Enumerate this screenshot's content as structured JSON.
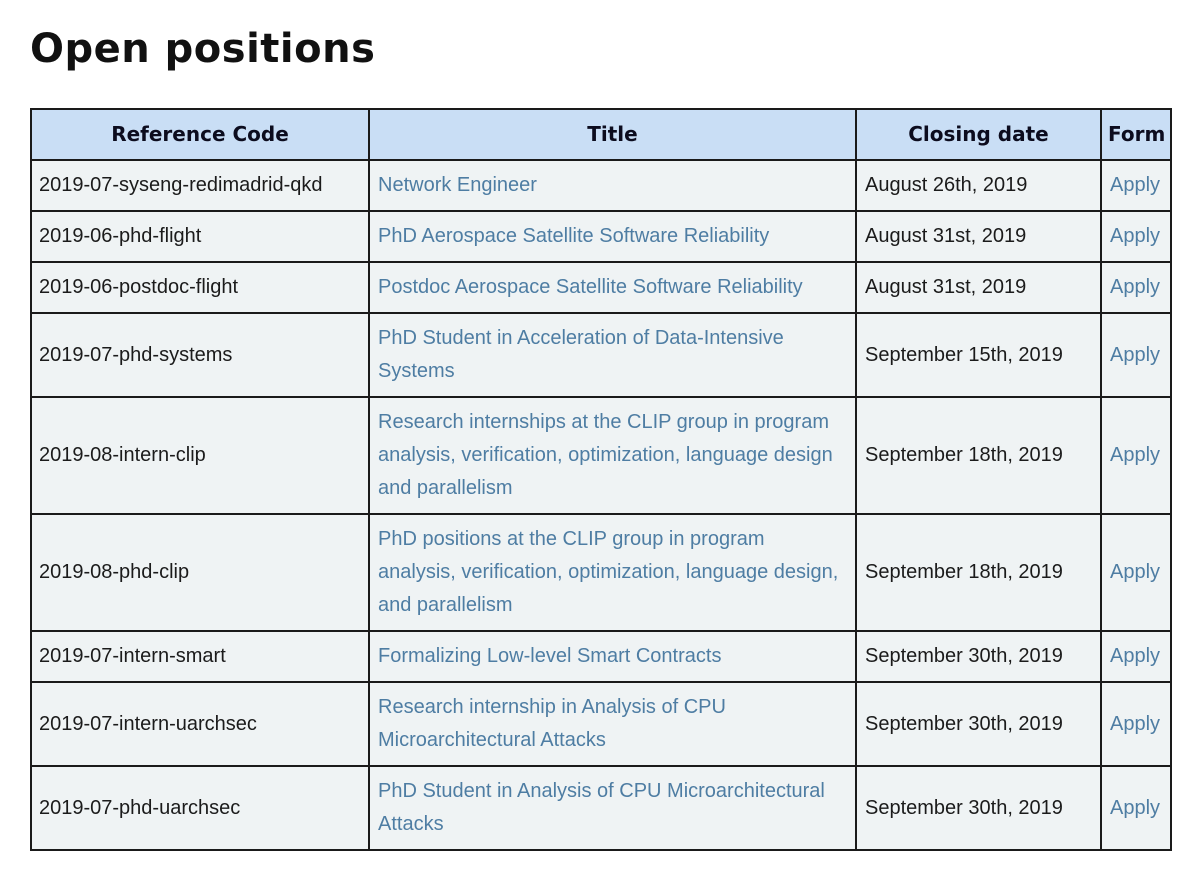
{
  "page": {
    "title": "Open positions"
  },
  "colors": {
    "header_bg": "#c9def5",
    "row_bg": "#eff3f4",
    "border": "#1a1a1a",
    "link": "#4e7da3",
    "header_text": "#0c0c1e",
    "body_text": "#1b1b1b",
    "heading_text": "#111111"
  },
  "table": {
    "headers": [
      "Reference Code",
      "Title",
      "Closing date",
      "Form"
    ],
    "rows": [
      {
        "ref": "2019-07-syseng-redimadrid-qkd",
        "title": "Network Engineer",
        "closing": "August 26th, 2019",
        "form": "Apply"
      },
      {
        "ref": "2019-06-phd-flight",
        "title": "PhD Aerospace Satellite Software Reliability",
        "closing": "August 31st, 2019",
        "form": "Apply"
      },
      {
        "ref": "2019-06-postdoc-flight",
        "title": "Postdoc Aerospace Satellite Software Reliability",
        "closing": "August 31st, 2019",
        "form": "Apply"
      },
      {
        "ref": "2019-07-phd-systems",
        "title": "PhD Student in Acceleration of Data-Intensive Systems",
        "closing": "September 15th, 2019",
        "form": "Apply"
      },
      {
        "ref": "2019-08-intern-clip",
        "title": "Research internships at the CLIP group in program analysis, verification, optimization, language design and parallelism",
        "closing": "September 18th, 2019",
        "form": "Apply"
      },
      {
        "ref": "2019-08-phd-clip",
        "title": "PhD positions at the CLIP group in program analysis, verification, optimization, language design, and parallelism",
        "closing": "September 18th, 2019",
        "form": "Apply"
      },
      {
        "ref": "2019-07-intern-smart",
        "title": "Formalizing Low-level Smart Contracts",
        "closing": "September 30th, 2019",
        "form": "Apply"
      },
      {
        "ref": "2019-07-intern-uarchsec",
        "title": "Research internship in Analysis of CPU Microarchitectural Attacks",
        "closing": "September 30th, 2019",
        "form": "Apply"
      },
      {
        "ref": "2019-07-phd-uarchsec",
        "title": "PhD Student in Analysis of CPU Microarchitectural Attacks",
        "closing": "September 30th, 2019",
        "form": "Apply"
      }
    ]
  }
}
